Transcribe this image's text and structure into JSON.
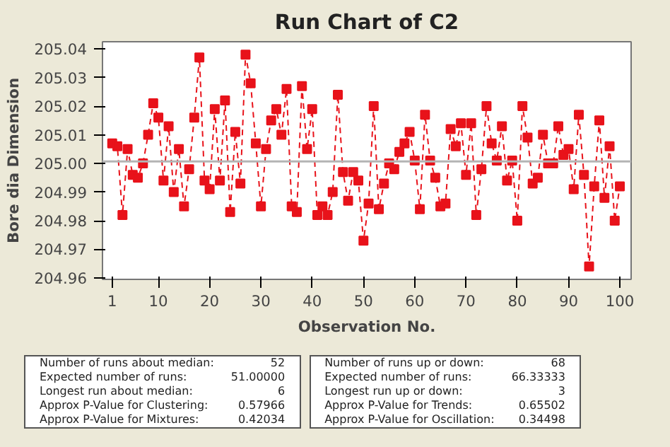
{
  "chart_data": {
    "type": "line",
    "title": "Run Chart of C2",
    "xlabel": "Observation No.",
    "ylabel": "Bore dia Dimension",
    "x": [
      1,
      2,
      3,
      4,
      5,
      6,
      7,
      8,
      9,
      10,
      11,
      12,
      13,
      14,
      15,
      16,
      17,
      18,
      19,
      20,
      21,
      22,
      23,
      24,
      25,
      26,
      27,
      28,
      29,
      30,
      31,
      32,
      33,
      34,
      35,
      36,
      37,
      38,
      39,
      40,
      41,
      42,
      43,
      44,
      45,
      46,
      47,
      48,
      49,
      50,
      51,
      52,
      53,
      54,
      55,
      56,
      57,
      58,
      59,
      60,
      61,
      62,
      63,
      64,
      65,
      66,
      67,
      68,
      69,
      70,
      71,
      72,
      73,
      74,
      75,
      76,
      77,
      78,
      79,
      80,
      81,
      82,
      83,
      84,
      85,
      86,
      87,
      88,
      89,
      90,
      91,
      92,
      93,
      94,
      95,
      96,
      97,
      98,
      99,
      100
    ],
    "series": [
      {
        "color": "#e8121a",
        "values": [
          205.007,
          205.006,
          204.982,
          205.005,
          204.996,
          204.995,
          205.0,
          205.01,
          205.021,
          205.016,
          204.994,
          205.013,
          204.99,
          205.005,
          204.985,
          204.998,
          205.016,
          205.037,
          204.994,
          204.991,
          205.019,
          204.994,
          205.022,
          204.983,
          205.011,
          204.993,
          205.038,
          205.028,
          205.007,
          204.985,
          205.005,
          205.015,
          205.019,
          205.01,
          205.026,
          204.985,
          204.983,
          205.027,
          205.005,
          205.019,
          204.982,
          204.985,
          204.982,
          204.99,
          205.024,
          204.997,
          204.987,
          204.997,
          204.994,
          204.973,
          204.986,
          205.02,
          204.984,
          204.993,
          205.0,
          204.998,
          205.004,
          205.007,
          205.011,
          205.001,
          204.984,
          205.017,
          205.001,
          204.995,
          204.985,
          204.986,
          205.012,
          205.006,
          205.014,
          204.996,
          205.014,
          204.982,
          204.998,
          205.02,
          205.007,
          205.001,
          205.013,
          204.994,
          205.001,
          204.98,
          205.02,
          205.009,
          204.993,
          204.995,
          205.01,
          205.0,
          205.0,
          205.013,
          205.003,
          205.005,
          204.991,
          205.017,
          204.996,
          204.964,
          204.992,
          205.015,
          204.988,
          205.006,
          204.98,
          204.992
        ]
      }
    ],
    "marker": "square",
    "line_style": "dashed",
    "grid": false,
    "xlim": [
      -0.9,
      102.2
    ],
    "xticks": [
      1,
      10,
      20,
      30,
      40,
      50,
      60,
      70,
      80,
      90,
      100
    ],
    "ylim": [
      204.9595,
      205.0425
    ],
    "yticks": [
      {
        "value": 204.96,
        "label": "204.96"
      },
      {
        "value": 204.97,
        "label": "204.97"
      },
      {
        "value": 204.98,
        "label": "204.98"
      },
      {
        "value": 204.99,
        "label": "204.99"
      },
      {
        "value": 205.0,
        "label": "205.00"
      },
      {
        "value": 205.01,
        "label": "205.01"
      },
      {
        "value": 205.02,
        "label": "205.02"
      },
      {
        "value": 205.03,
        "label": "205.03"
      },
      {
        "value": 205.04,
        "label": "205.04"
      }
    ],
    "ref_lines": [
      {
        "axis": "y",
        "value": 205.0007,
        "color": "#b4b4b4"
      }
    ],
    "annotations": [
      "Number of runs about median:",
      "52",
      "Expected number of runs:",
      "51.00000",
      "Longest run about median:",
      "6",
      "Approx P-Value for Clustering:",
      "0.57966",
      "Approx P-Value for Mixtures:",
      "0.42034",
      "Number of runs up or down:",
      "68",
      "Expected number of runs:",
      "66.33333",
      "Longest run up or down:",
      "3",
      "Approx P-Value for Trends:",
      "0.65502",
      "Approx P-Value for Oscillation:",
      "0.34498"
    ]
  }
}
